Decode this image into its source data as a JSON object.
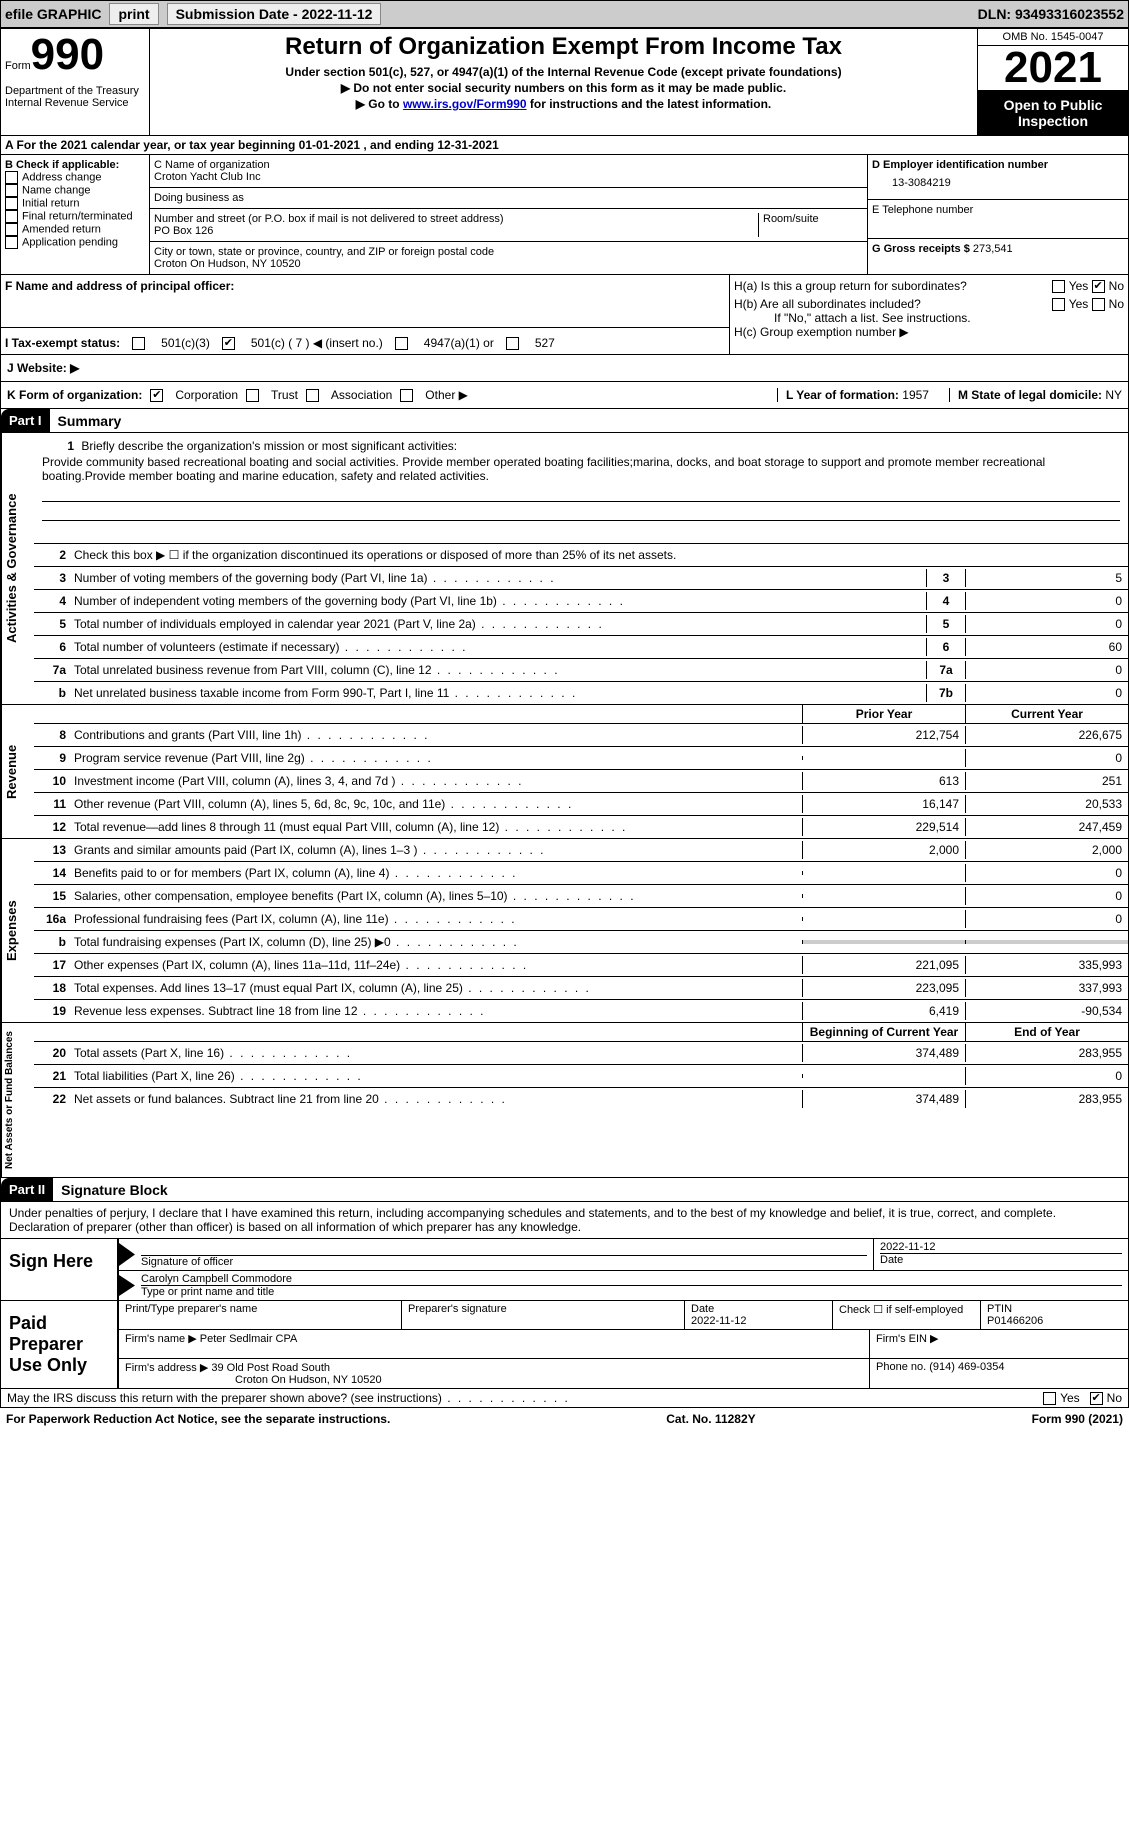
{
  "topbar": {
    "efile": "efile GRAPHIC",
    "print": "print",
    "submission": "Submission Date - 2022-11-12",
    "dln": "DLN: 93493316023552"
  },
  "header": {
    "form_label": "Form",
    "form_num": "990",
    "dept": "Department of the Treasury\nInternal Revenue Service",
    "title": "Return of Organization Exempt From Income Tax",
    "subtitle": "Under section 501(c), 527, or 4947(a)(1) of the Internal Revenue Code (except private foundations)",
    "instr1": "▶ Do not enter social security numbers on this form as it may be made public.",
    "instr2_pre": "▶ Go to ",
    "instr2_link": "www.irs.gov/Form990",
    "instr2_post": " for instructions and the latest information.",
    "omb": "OMB No. 1545-0047",
    "year": "2021",
    "open": "Open to Public Inspection"
  },
  "rowA": "A For the 2021 calendar year, or tax year beginning 01-01-2021    , and ending 12-31-2021",
  "boxB": {
    "title": "B Check if applicable:",
    "items": [
      "Address change",
      "Name change",
      "Initial return",
      "Final return/terminated",
      "Amended return",
      "Application pending"
    ]
  },
  "boxC": {
    "name_label": "C Name of organization",
    "name": "Croton Yacht Club Inc",
    "dba_label": "Doing business as",
    "dba": "",
    "addr_label": "Number and street (or P.O. box if mail is not delivered to street address)",
    "room_label": "Room/suite",
    "addr": "PO Box 126",
    "city_label": "City or town, state or province, country, and ZIP or foreign postal code",
    "city": "Croton On Hudson, NY   10520"
  },
  "boxD": {
    "ein_label": "D Employer identification number",
    "ein": "13-3084219",
    "phone_label": "E Telephone number",
    "phone": "",
    "gross_label": "G Gross receipts $",
    "gross": "273,541"
  },
  "rowF": {
    "label": "F  Name and address of principal officer:",
    "value": ""
  },
  "rowH": {
    "ha": "H(a)  Is this a group return for subordinates?",
    "hb": "H(b)  Are all subordinates included?",
    "hb_note": "If \"No,\" attach a list. See instructions.",
    "hc": "H(c)  Group exemption number ▶",
    "yes": "Yes",
    "no": "No"
  },
  "taxrow": {
    "label": "I   Tax-exempt status:",
    "opt1": "501(c)(3)",
    "opt2": "501(c) ( 7 ) ◀ (insert no.)",
    "opt3": "4947(a)(1) or",
    "opt4": "527"
  },
  "webrow": {
    "label": "J   Website: ▶"
  },
  "krow": {
    "label": "K Form of organization:",
    "opts": [
      "Corporation",
      "Trust",
      "Association",
      "Other ▶"
    ],
    "l_label": "L Year of formation: ",
    "l_val": "1957",
    "m_label": "M State of legal domicile: ",
    "m_val": "NY"
  },
  "part1": {
    "hdr": "Part I",
    "title": "Summary",
    "side_ag": "Activities & Governance",
    "side_rev": "Revenue",
    "side_exp": "Expenses",
    "side_na": "Net Assets or Fund Balances",
    "q1_label": "Briefly describe the organization's mission or most significant activities:",
    "q1_text": "Provide community based recreational boating and social activities. Provide member operated boating facilities;marina, docks, and boat storage to support and promote member recreational boating.Provide member boating and marine education, safety and related activities.",
    "q2": "Check this box ▶ ☐  if the organization discontinued its operations or disposed of more than 25% of its net assets.",
    "lines_ag": [
      {
        "n": "3",
        "t": "Number of voting members of the governing body (Part VI, line 1a)",
        "box": "3",
        "v": "5"
      },
      {
        "n": "4",
        "t": "Number of independent voting members of the governing body (Part VI, line 1b)",
        "box": "4",
        "v": "0"
      },
      {
        "n": "5",
        "t": "Total number of individuals employed in calendar year 2021 (Part V, line 2a)",
        "box": "5",
        "v": "0"
      },
      {
        "n": "6",
        "t": "Total number of volunteers (estimate if necessary)",
        "box": "6",
        "v": "60"
      },
      {
        "n": "7a",
        "t": "Total unrelated business revenue from Part VIII, column (C), line 12",
        "box": "7a",
        "v": "0"
      },
      {
        "n": "b",
        "t": "Net unrelated business taxable income from Form 990-T, Part I, line 11",
        "box": "7b",
        "v": "0"
      }
    ],
    "col_prior": "Prior Year",
    "col_current": "Current Year",
    "lines_rev": [
      {
        "n": "8",
        "t": "Contributions and grants (Part VIII, line 1h)",
        "p": "212,754",
        "c": "226,675"
      },
      {
        "n": "9",
        "t": "Program service revenue (Part VIII, line 2g)",
        "p": "",
        "c": "0"
      },
      {
        "n": "10",
        "t": "Investment income (Part VIII, column (A), lines 3, 4, and 7d )",
        "p": "613",
        "c": "251"
      },
      {
        "n": "11",
        "t": "Other revenue (Part VIII, column (A), lines 5, 6d, 8c, 9c, 10c, and 11e)",
        "p": "16,147",
        "c": "20,533"
      },
      {
        "n": "12",
        "t": "Total revenue—add lines 8 through 11 (must equal Part VIII, column (A), line 12)",
        "p": "229,514",
        "c": "247,459"
      }
    ],
    "lines_exp": [
      {
        "n": "13",
        "t": "Grants and similar amounts paid (Part IX, column (A), lines 1–3 )",
        "p": "2,000",
        "c": "2,000"
      },
      {
        "n": "14",
        "t": "Benefits paid to or for members (Part IX, column (A), line 4)",
        "p": "",
        "c": "0"
      },
      {
        "n": "15",
        "t": "Salaries, other compensation, employee benefits (Part IX, column (A), lines 5–10)",
        "p": "",
        "c": "0"
      },
      {
        "n": "16a",
        "t": "Professional fundraising fees (Part IX, column (A), line 11e)",
        "p": "",
        "c": "0"
      },
      {
        "n": "b",
        "t": "Total fundraising expenses (Part IX, column (D), line 25) ▶0",
        "p": "shaded",
        "c": "shaded"
      },
      {
        "n": "17",
        "t": "Other expenses (Part IX, column (A), lines 11a–11d, 11f–24e)",
        "p": "221,095",
        "c": "335,993"
      },
      {
        "n": "18",
        "t": "Total expenses. Add lines 13–17 (must equal Part IX, column (A), line 25)",
        "p": "223,095",
        "c": "337,993"
      },
      {
        "n": "19",
        "t": "Revenue less expenses. Subtract line 18 from line 12",
        "p": "6,419",
        "c": "-90,534"
      }
    ],
    "col_boy": "Beginning of Current Year",
    "col_eoy": "End of Year",
    "lines_na": [
      {
        "n": "20",
        "t": "Total assets (Part X, line 16)",
        "p": "374,489",
        "c": "283,955"
      },
      {
        "n": "21",
        "t": "Total liabilities (Part X, line 26)",
        "p": "",
        "c": "0"
      },
      {
        "n": "22",
        "t": "Net assets or fund balances. Subtract line 21 from line 20",
        "p": "374,489",
        "c": "283,955"
      }
    ]
  },
  "part2": {
    "hdr": "Part II",
    "title": "Signature Block",
    "decl": "Under penalties of perjury, I declare that I have examined this return, including accompanying schedules and statements, and to the best of my knowledge and belief, it is true, correct, and complete. Declaration of preparer (other than officer) is based on all information of which preparer has any knowledge.",
    "sign_here": "Sign Here",
    "sig_officer": "Signature of officer",
    "sig_date": "2022-11-12",
    "date_label": "Date",
    "officer_name": "Carolyn Campbell  Commodore",
    "name_label": "Type or print name and title",
    "paid": "Paid Preparer Use Only",
    "prep_name_label": "Print/Type preparer's name",
    "prep_sig_label": "Preparer's signature",
    "prep_date_label": "Date",
    "prep_date": "2022-11-12",
    "check_self": "Check ☐ if self-employed",
    "ptin_label": "PTIN",
    "ptin": "P01466206",
    "firm_name_label": "Firm's name     ▶",
    "firm_name": "Peter Sedlmair CPA",
    "firm_ein_label": "Firm's EIN ▶",
    "firm_addr_label": "Firm's address ▶",
    "firm_addr": "39 Old Post Road South",
    "firm_city": "Croton On Hudson, NY   10520",
    "phone_label": "Phone no.",
    "phone": "(914) 469-0354",
    "discuss": "May the IRS discuss this return with the preparer shown above? (see instructions)",
    "yes": "Yes",
    "no": "No"
  },
  "footer": {
    "pra": "For Paperwork Reduction Act Notice, see the separate instructions.",
    "cat": "Cat. No. 11282Y",
    "form": "Form 990 (2021)"
  }
}
